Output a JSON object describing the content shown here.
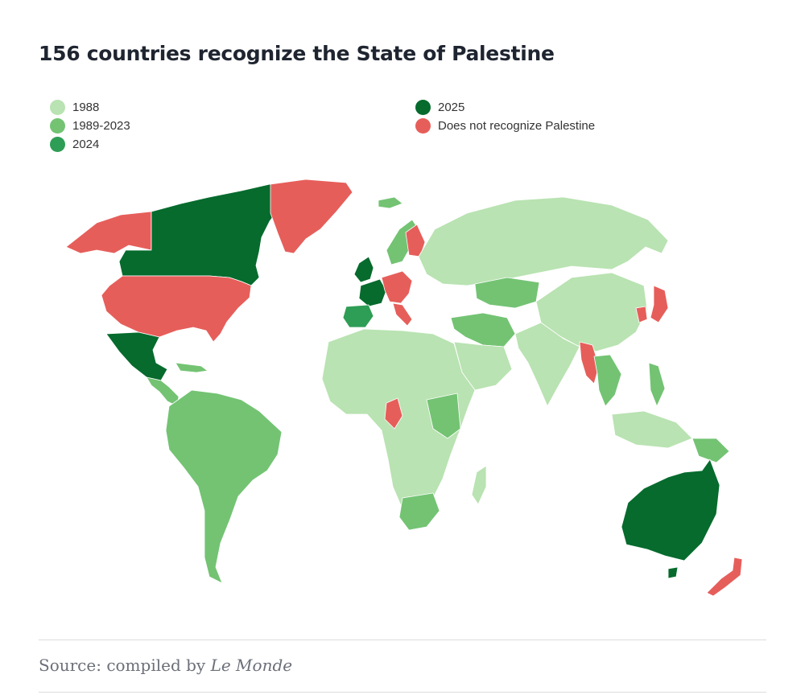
{
  "title": "156 countries recognize the State of Palestine",
  "legend": [
    {
      "label": "1988",
      "color": "#b9e3b2"
    },
    {
      "label": "1989-2023",
      "color": "#73c373"
    },
    {
      "label": "2024",
      "color": "#2e9d55"
    },
    {
      "label": "2025",
      "color": "#066b2d"
    },
    {
      "label": "Does not recognize Palestine",
      "color": "#e65e5a"
    }
  ],
  "source": {
    "prefix": "Source: compiled by ",
    "name": "Le Monde"
  }
}
